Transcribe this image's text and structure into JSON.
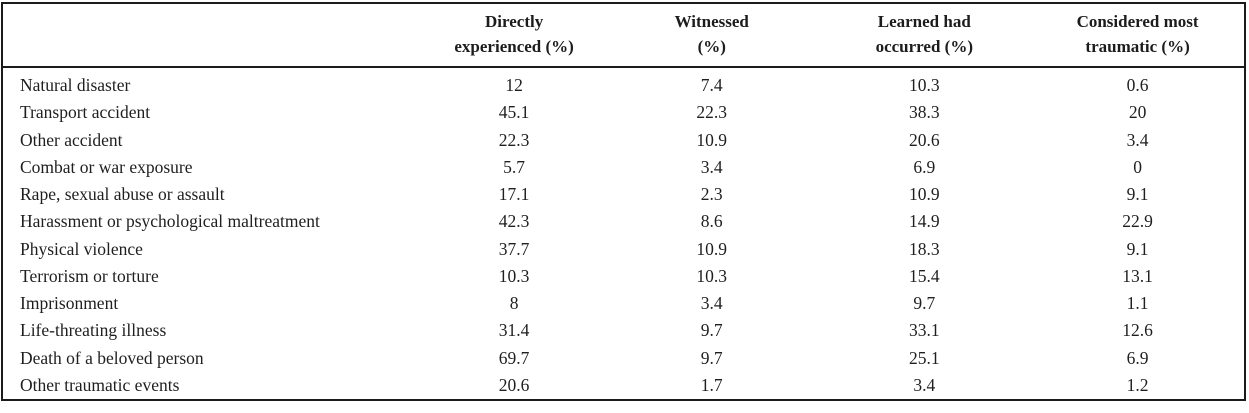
{
  "colors": {
    "background": "#ffffff",
    "border": "#1b1b1b",
    "text": "#1f1f1f"
  },
  "table": {
    "columns": [
      {
        "label": "Directly experienced (%)",
        "line1": "Directly",
        "line2": "experienced (%)"
      },
      {
        "label": "Witnessed (%)",
        "line1": "Witnessed",
        "line2": "(%)"
      },
      {
        "label": "Learned had occurred (%)",
        "line1": "Learned had",
        "line2": "occurred (%)"
      },
      {
        "label": "Considered most traumatic (%)",
        "line1": "Considered most",
        "line2": "traumatic (%)"
      }
    ],
    "rows": [
      {
        "label": "Natural disaster",
        "values": [
          "12",
          "7.4",
          "10.3",
          "0.6"
        ]
      },
      {
        "label": "Transport accident",
        "values": [
          "45.1",
          "22.3",
          "38.3",
          "20"
        ]
      },
      {
        "label": "Other accident",
        "values": [
          "22.3",
          "10.9",
          "20.6",
          "3.4"
        ]
      },
      {
        "label": "Combat or war exposure",
        "values": [
          "5.7",
          "3.4",
          "6.9",
          "0"
        ]
      },
      {
        "label": "Rape, sexual abuse or assault",
        "values": [
          "17.1",
          "2.3",
          "10.9",
          "9.1"
        ]
      },
      {
        "label": "Harassment or psychological maltreatment",
        "values": [
          "42.3",
          "8.6",
          "14.9",
          "22.9"
        ]
      },
      {
        "label": "Physical violence",
        "values": [
          "37.7",
          "10.9",
          "18.3",
          "9.1"
        ]
      },
      {
        "label": "Terrorism or torture",
        "values": [
          "10.3",
          "10.3",
          "15.4",
          "13.1"
        ]
      },
      {
        "label": "Imprisonment",
        "values": [
          "8",
          "3.4",
          "9.7",
          "1.1"
        ]
      },
      {
        "label": "Life-threating illness",
        "values": [
          "31.4",
          "9.7",
          "33.1",
          "12.6"
        ]
      },
      {
        "label": "Death of a beloved person",
        "values": [
          "69.7",
          "9.7",
          "25.1",
          "6.9"
        ]
      },
      {
        "label": "Other traumatic events",
        "values": [
          "20.6",
          "1.7",
          "3.4",
          "1.2"
        ]
      }
    ]
  }
}
